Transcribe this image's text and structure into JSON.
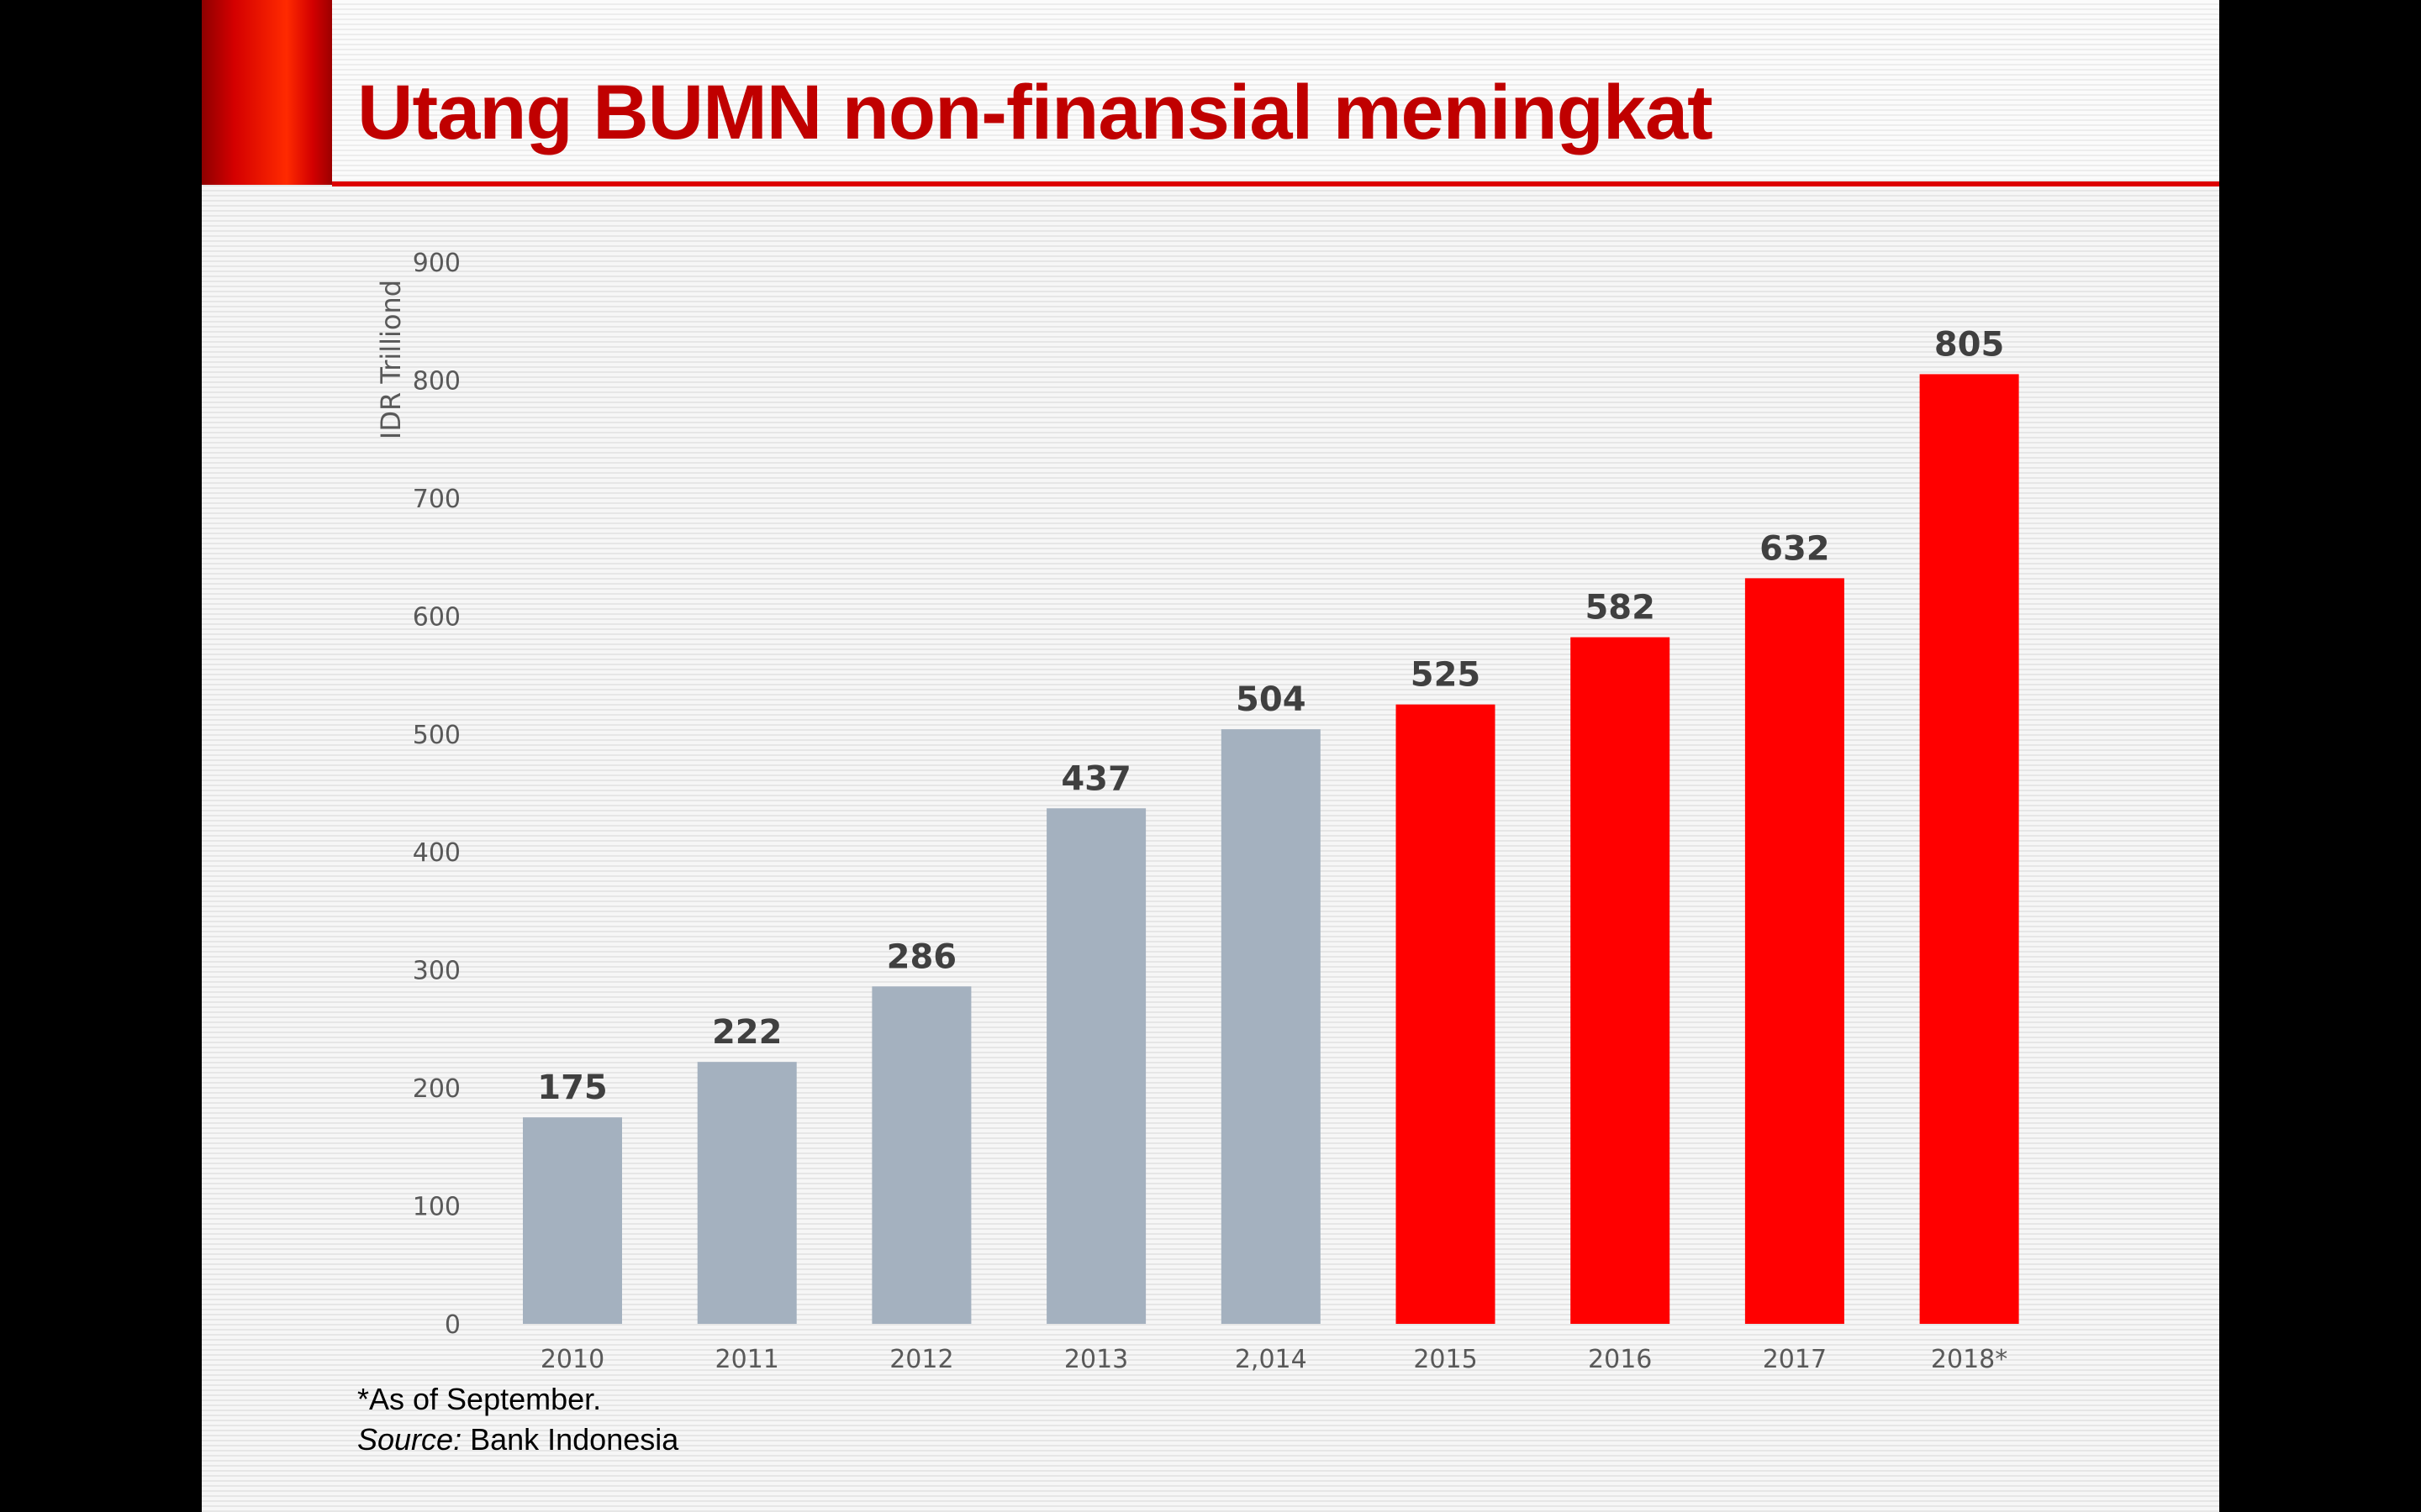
{
  "title": "Utang BUMN non-finansial meningkat",
  "footnote": {
    "asof": "*As of September.",
    "source_label": "Source:",
    "source_value": " Bank Indonesia"
  },
  "colors": {
    "historical": "#a4b1bf",
    "recent": "#ff0000",
    "title": "#c00000",
    "accent_rule": "#dd0000"
  },
  "chart_data": {
    "type": "bar",
    "ylabel": "IDR Trilliond",
    "xlabel": "",
    "ylim": [
      0,
      900
    ],
    "yticks": [
      0,
      100,
      200,
      300,
      400,
      500,
      600,
      700,
      800,
      900
    ],
    "grid": false,
    "legend": "none",
    "categories": [
      "2010",
      "2011",
      "2012",
      "2013",
      "2,014",
      "2015",
      "2016",
      "2017",
      "2018*"
    ],
    "values": [
      175,
      222,
      286,
      437,
      504,
      525,
      582,
      632,
      805
    ],
    "data_labels": [
      "175",
      "222",
      "286",
      "437",
      "504",
      "525",
      "582",
      "632",
      "805"
    ],
    "bar_colors": [
      "#a4b1bf",
      "#a4b1bf",
      "#a4b1bf",
      "#a4b1bf",
      "#a4b1bf",
      "#ff0000",
      "#ff0000",
      "#ff0000",
      "#ff0000"
    ]
  }
}
